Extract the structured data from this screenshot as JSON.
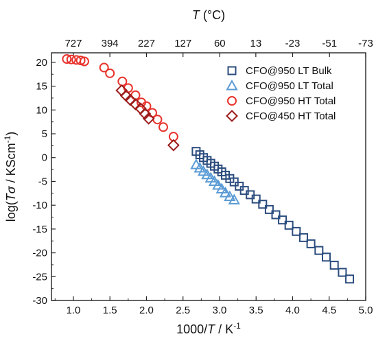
{
  "chart_data": {
    "type": "scatter",
    "xlabel": {
      "prefix": "1000/",
      "italic": "T",
      "suffix": "  / K",
      "sup": "-1"
    },
    "ylabel": {
      "prefix": "log(",
      "italic": "Tσ",
      "suffix": " / KScm",
      "sup": "-1",
      "end": ")"
    },
    "top_label": {
      "italic": "T",
      "suffix": " (°C)"
    },
    "xlim": [
      0.7,
      5.0
    ],
    "ylim": [
      -30,
      22
    ],
    "xticks": [
      {
        "value": 1.0,
        "label": "1.0"
      },
      {
        "value": 1.5,
        "label": "1.5"
      },
      {
        "value": 2.0,
        "label": "2.0"
      },
      {
        "value": 2.5,
        "label": "2.5"
      },
      {
        "value": 3.0,
        "label": "3.0"
      },
      {
        "value": 3.5,
        "label": "3.5"
      },
      {
        "value": 4.0,
        "label": "4.0"
      },
      {
        "value": 4.5,
        "label": "4.5"
      },
      {
        "value": 5.0,
        "label": "5.0"
      }
    ],
    "yticks": [
      {
        "value": 20,
        "label": "20"
      },
      {
        "value": 15,
        "label": "15"
      },
      {
        "value": 10,
        "label": "10"
      },
      {
        "value": 5,
        "label": "5"
      },
      {
        "value": 0,
        "label": "0"
      },
      {
        "value": -5,
        "label": "-5"
      },
      {
        "value": -10,
        "label": "-10"
      },
      {
        "value": -15,
        "label": "-15"
      },
      {
        "value": -20,
        "label": "-20"
      },
      {
        "value": -25,
        "label": "-25"
      },
      {
        "value": -30,
        "label": "-30"
      }
    ],
    "top_ticks": [
      {
        "label": "727",
        "temp_c": 727
      },
      {
        "label": "394",
        "temp_c": 394
      },
      {
        "label": "227",
        "temp_c": 227
      },
      {
        "label": "127",
        "temp_c": 127
      },
      {
        "label": "60",
        "temp_c": 60
      },
      {
        "label": "13",
        "temp_c": 13
      },
      {
        "label": "-23",
        "temp_c": -23
      },
      {
        "label": "-51",
        "temp_c": -51
      },
      {
        "label": "-73",
        "temp_c": -73
      }
    ],
    "legend_position": "top-right",
    "series": [
      {
        "name": "CFO@950 LT Bulk",
        "marker": "square",
        "color": "#2b4c7e",
        "points": [
          [
            2.68,
            1.3
          ],
          [
            2.73,
            0.6
          ],
          [
            2.78,
            0.0
          ],
          [
            2.83,
            -0.6
          ],
          [
            2.88,
            -1.2
          ],
          [
            2.93,
            -1.8
          ],
          [
            2.98,
            -2.4
          ],
          [
            3.03,
            -3.0
          ],
          [
            3.08,
            -3.7
          ],
          [
            3.14,
            -4.4
          ],
          [
            3.2,
            -5.1
          ],
          [
            3.27,
            -6.0
          ],
          [
            3.34,
            -6.9
          ],
          [
            3.42,
            -7.8
          ],
          [
            3.5,
            -8.7
          ],
          [
            3.59,
            -9.8
          ],
          [
            3.68,
            -10.9
          ],
          [
            3.77,
            -12.0
          ],
          [
            3.86,
            -13.1
          ],
          [
            3.95,
            -14.2
          ],
          [
            4.05,
            -15.5
          ],
          [
            4.15,
            -16.8
          ],
          [
            4.25,
            -18.1
          ],
          [
            4.36,
            -19.5
          ],
          [
            4.46,
            -20.9
          ],
          [
            4.57,
            -22.6
          ],
          [
            4.68,
            -24.1
          ],
          [
            4.78,
            -25.5
          ]
        ]
      },
      {
        "name": "CFO@950 LT Total",
        "marker": "triangle",
        "color": "#5b9bd5",
        "points": [
          [
            2.68,
            -1.5
          ],
          [
            2.73,
            -2.2
          ],
          [
            2.78,
            -2.9
          ],
          [
            2.83,
            -3.6
          ],
          [
            2.88,
            -4.3
          ],
          [
            2.93,
            -5.0
          ],
          [
            2.98,
            -5.8
          ],
          [
            3.03,
            -6.6
          ],
          [
            3.08,
            -7.4
          ],
          [
            3.14,
            -8.2
          ],
          [
            3.2,
            -8.9
          ]
        ]
      },
      {
        "name": "CFO@950 HT Total",
        "marker": "circle",
        "color": "#e8322b",
        "points": [
          [
            0.91,
            20.7
          ],
          [
            0.97,
            20.6
          ],
          [
            1.04,
            20.5
          ],
          [
            1.1,
            20.4
          ],
          [
            1.15,
            20.2
          ],
          [
            1.42,
            18.9
          ],
          [
            1.5,
            17.7
          ],
          [
            1.67,
            16.0
          ],
          [
            1.75,
            14.6
          ],
          [
            1.85,
            13.1
          ],
          [
            1.93,
            11.6
          ],
          [
            2.0,
            10.8
          ],
          [
            2.08,
            9.4
          ],
          [
            2.15,
            8.0
          ],
          [
            2.23,
            6.4
          ],
          [
            2.37,
            4.4
          ]
        ]
      },
      {
        "name": "CFO@450 HT Total",
        "marker": "diamond",
        "color": "#9b1c1c",
        "points": [
          [
            1.66,
            14.1
          ],
          [
            1.72,
            13.0
          ],
          [
            1.78,
            12.1
          ],
          [
            1.85,
            11.2
          ],
          [
            1.92,
            10.3
          ],
          [
            1.98,
            9.2
          ],
          [
            2.03,
            8.2
          ],
          [
            2.37,
            2.6
          ]
        ]
      }
    ]
  }
}
